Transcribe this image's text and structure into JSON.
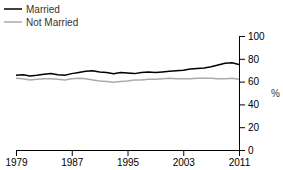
{
  "chart_data": {
    "type": "line",
    "ylabel": "%",
    "x": [
      1979,
      1980,
      1981,
      1982,
      1983,
      1984,
      1985,
      1986,
      1987,
      1988,
      1989,
      1990,
      1991,
      1992,
      1993,
      1994,
      1995,
      1996,
      1997,
      1998,
      1999,
      2000,
      2001,
      2002,
      2003,
      2004,
      2005,
      2006,
      2007,
      2008,
      2009,
      2010,
      2011
    ],
    "series": [
      {
        "name": "Married",
        "color": "#000000",
        "values": [
          65.5,
          66.0,
          65.0,
          65.5,
          66.5,
          67.0,
          66.0,
          65.5,
          67.0,
          68.0,
          69.0,
          69.5,
          68.5,
          68.0,
          67.0,
          68.0,
          67.5,
          67.0,
          68.0,
          68.5,
          68.0,
          68.5,
          69.0,
          69.5,
          70.0,
          71.0,
          71.5,
          72.0,
          73.0,
          74.5,
          76.0,
          76.5,
          75.0
        ]
      },
      {
        "name": "Not Married",
        "color": "#aaaaaa",
        "values": [
          63.0,
          62.5,
          61.5,
          62.0,
          62.5,
          62.5,
          62.0,
          61.5,
          62.5,
          63.0,
          62.5,
          61.5,
          60.5,
          60.0,
          59.5,
          60.0,
          60.5,
          61.5,
          61.5,
          62.0,
          62.0,
          62.5,
          63.0,
          62.5,
          62.5,
          62.5,
          63.0,
          63.0,
          63.0,
          62.5,
          62.5,
          63.0,
          62.0
        ]
      }
    ],
    "xlim": [
      1979,
      2011
    ],
    "ylim": [
      0,
      100
    ],
    "xticks": [
      1979,
      1987,
      1995,
      2003,
      2011
    ],
    "yticks": [
      0,
      20,
      40,
      60,
      80,
      100
    ],
    "grid": false,
    "legend": "upper left"
  }
}
